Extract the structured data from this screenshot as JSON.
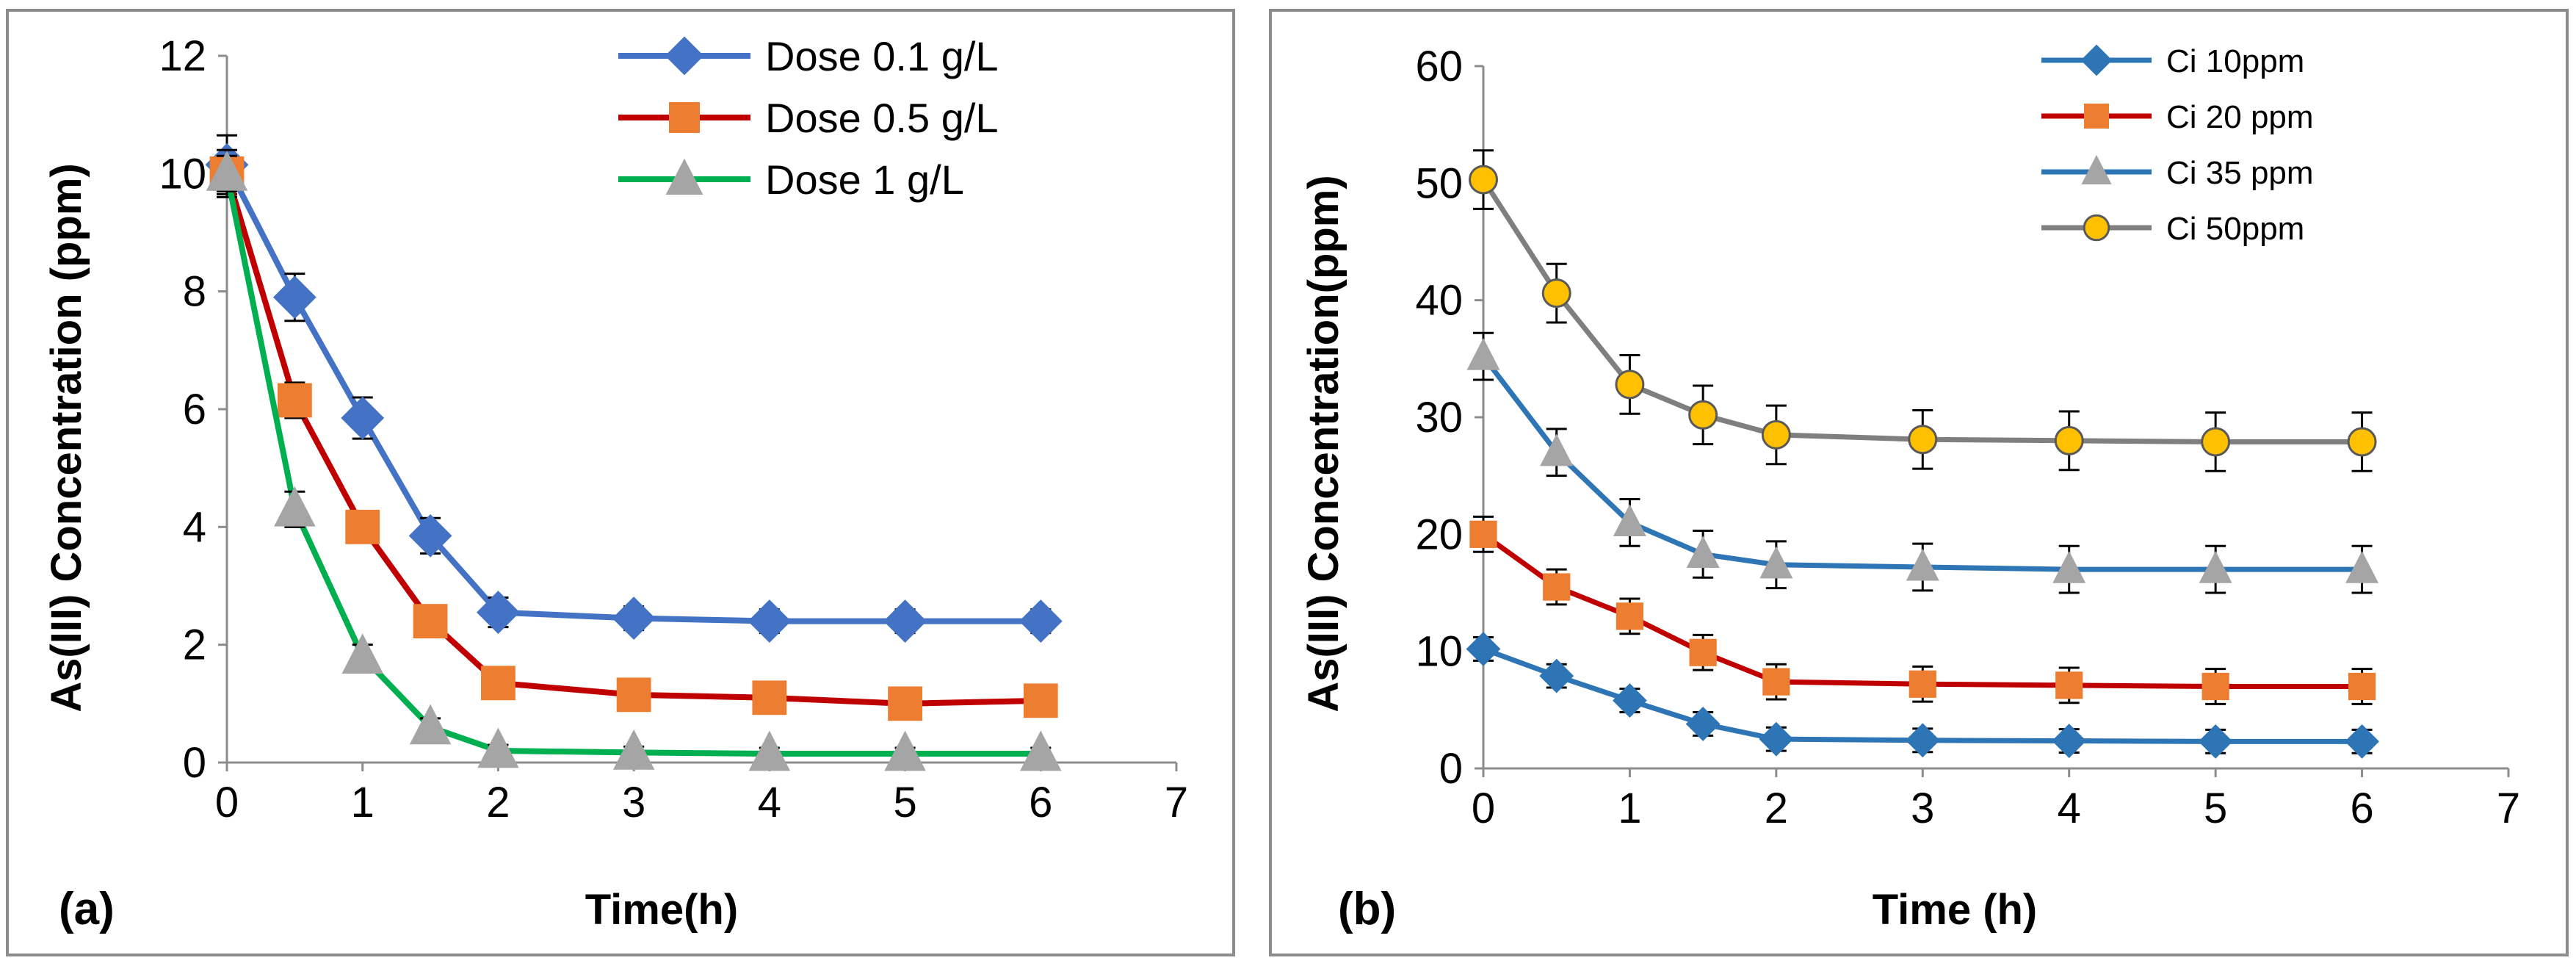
{
  "chart_data": [
    {
      "panel_label": "(a)",
      "type": "line",
      "title": "",
      "xlabel": "Time(h)",
      "ylabel": "As(III) Concentration (ppm)",
      "xlim": [
        0,
        7
      ],
      "ylim": [
        0,
        12
      ],
      "xticks": [
        "0",
        "1",
        "2",
        "3",
        "4",
        "5",
        "6",
        "7"
      ],
      "yticks": [
        "0",
        "2",
        "4",
        "6",
        "8",
        "10",
        "12"
      ],
      "grid": false,
      "legend_position": "top-right",
      "x": [
        0,
        0.5,
        1,
        1.5,
        2,
        3,
        4,
        5,
        6
      ],
      "series": [
        {
          "name": "Dose 0.1 g/L",
          "marker": "diamond",
          "line_color": "#4472C4",
          "marker_color": "#4472C4",
          "values": [
            10.15,
            7.9,
            5.85,
            3.85,
            2.55,
            2.45,
            2.4,
            2.4,
            2.4
          ],
          "errors": [
            0.5,
            0.4,
            0.35,
            0.3,
            0.25,
            0.2,
            0.2,
            0.2,
            0.2
          ]
        },
        {
          "name": "Dose 0.5 g/L",
          "marker": "square",
          "line_color": "#C00000",
          "marker_color": "#ED7D31",
          "values": [
            10.0,
            6.15,
            4.0,
            2.4,
            1.35,
            1.15,
            1.1,
            1.0,
            1.05
          ],
          "errors": [
            0.4,
            0.3,
            0.25,
            0.2,
            0.15,
            0.15,
            0.15,
            0.15,
            0.15
          ]
        },
        {
          "name": "Dose 1 g/L",
          "marker": "triangle",
          "line_color": "#00B050",
          "marker_color": "#A5A5A5",
          "values": [
            10.0,
            4.3,
            1.8,
            0.6,
            0.2,
            0.17,
            0.15,
            0.15,
            0.15
          ],
          "errors": [
            0.3,
            0.3,
            0.2,
            0.15,
            0.1,
            0.1,
            0.1,
            0.1,
            0.1
          ]
        }
      ]
    },
    {
      "panel_label": "(b)",
      "type": "line",
      "title": "",
      "xlabel": "Time (h)",
      "ylabel": "As(III)  Concentration(ppm)",
      "xlim": [
        0,
        7
      ],
      "ylim": [
        0,
        60
      ],
      "xticks": [
        "0",
        "1",
        "2",
        "3",
        "4",
        "5",
        "6",
        "7"
      ],
      "yticks": [
        "0",
        "10",
        "20",
        "30",
        "40",
        "50",
        "60"
      ],
      "grid": false,
      "legend_position": "top-right",
      "x": [
        0,
        0.5,
        1,
        1.5,
        2,
        3,
        4,
        5,
        6
      ],
      "series": [
        {
          "name": "Ci 10ppm",
          "marker": "diamond",
          "line_color": "#2E75B6",
          "marker_color": "#2E75B6",
          "values": [
            10.2,
            7.9,
            5.8,
            3.8,
            2.5,
            2.4,
            2.35,
            2.3,
            2.3
          ],
          "errors": [
            1.0,
            1.0,
            1.0,
            1.0,
            1.0,
            1.0,
            1.0,
            1.0,
            1.0
          ]
        },
        {
          "name": "Ci 20 ppm",
          "marker": "square",
          "line_color": "#C00000",
          "marker_color": "#ED7D31",
          "values": [
            20.0,
            15.5,
            13.0,
            9.9,
            7.4,
            7.2,
            7.1,
            7.0,
            7.0
          ],
          "errors": [
            1.5,
            1.5,
            1.5,
            1.5,
            1.5,
            1.5,
            1.5,
            1.5,
            1.5
          ]
        },
        {
          "name": "Ci 35 ppm",
          "marker": "triangle",
          "line_color": "#2E75B6",
          "marker_color": "#A5A5A5",
          "values": [
            35.2,
            27.0,
            21.0,
            18.3,
            17.4,
            17.2,
            17.0,
            17.0,
            17.0
          ],
          "errors": [
            2.0,
            2.0,
            2.0,
            2.0,
            2.0,
            2.0,
            2.0,
            2.0,
            2.0
          ]
        },
        {
          "name": "Ci 50ppm",
          "marker": "circle",
          "line_color": "#7F7F7F",
          "marker_color": "#FFC000",
          "values": [
            50.3,
            40.6,
            32.8,
            30.2,
            28.5,
            28.1,
            28.0,
            27.9,
            27.9
          ],
          "errors": [
            2.5,
            2.5,
            2.5,
            2.5,
            2.5,
            2.5,
            2.5,
            2.5,
            2.5
          ]
        }
      ]
    }
  ]
}
